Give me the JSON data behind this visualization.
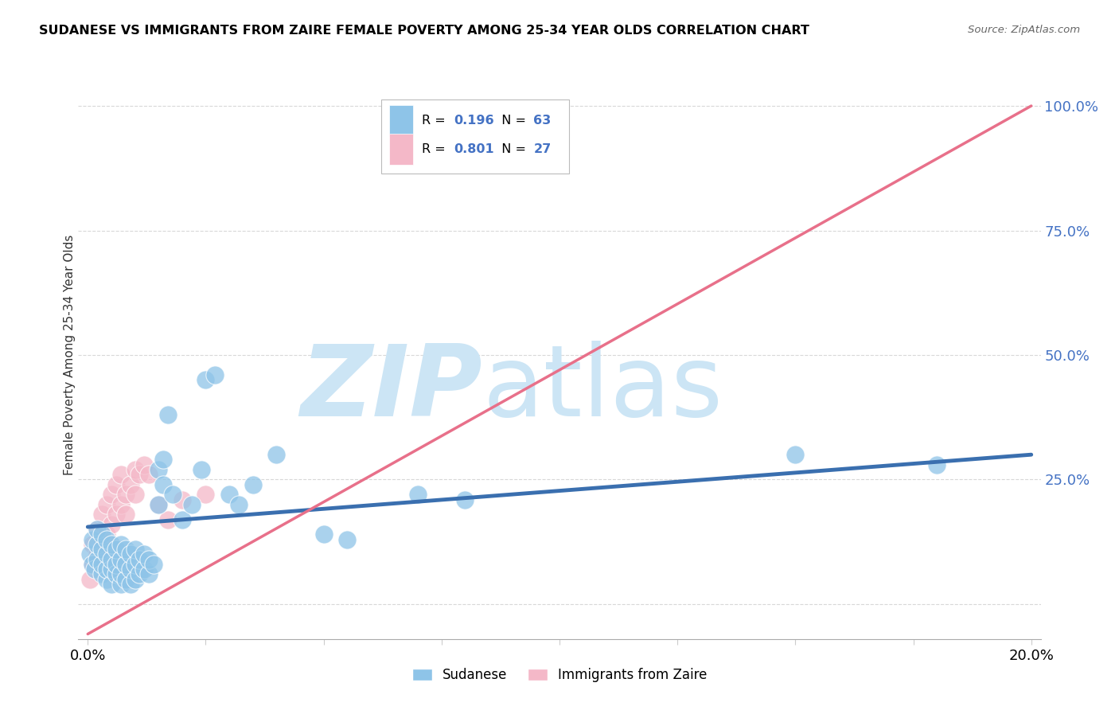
{
  "title": "SUDANESE VS IMMIGRANTS FROM ZAIRE FEMALE POVERTY AMONG 25-34 YEAR OLDS CORRELATION CHART",
  "source_text": "Source: ZipAtlas.com",
  "ylabel": "Female Poverty Among 25-34 Year Olds",
  "xlim": [
    -0.002,
    0.202
  ],
  "ylim": [
    -0.07,
    1.07
  ],
  "xtick_positions": [
    0.0,
    0.025,
    0.05,
    0.075,
    0.1,
    0.125,
    0.15,
    0.175,
    0.2
  ],
  "xticklabels_show": {
    "0.0": "0.0%",
    "0.2": "20.0%"
  },
  "ytick_positions": [
    0.0,
    0.25,
    0.5,
    0.75,
    1.0
  ],
  "yticklabels": [
    "",
    "25.0%",
    "50.0%",
    "75.0%",
    "100.0%"
  ],
  "blue_color": "#8ec4e8",
  "pink_color": "#f4b8c8",
  "blue_line_color": "#3a6faf",
  "pink_line_color": "#e8708a",
  "watermark_zip": "ZIP",
  "watermark_atlas": "atlas",
  "watermark_color": "#cce5f5",
  "background_color": "#ffffff",
  "grid_color": "#d8d8d8",
  "legend_label_blue": "Sudanese",
  "legend_label_pink": "Immigrants from Zaire",
  "blue_line_x0": 0.0,
  "blue_line_y0": 0.155,
  "blue_line_x1": 0.2,
  "blue_line_y1": 0.3,
  "pink_line_x0": 0.0,
  "pink_line_y0": -0.06,
  "pink_line_x1": 0.2,
  "pink_line_y1": 1.0,
  "blue_scatter_x": [
    0.0005,
    0.001,
    0.001,
    0.0015,
    0.002,
    0.002,
    0.002,
    0.003,
    0.003,
    0.003,
    0.003,
    0.004,
    0.004,
    0.004,
    0.004,
    0.005,
    0.005,
    0.005,
    0.005,
    0.006,
    0.006,
    0.006,
    0.007,
    0.007,
    0.007,
    0.007,
    0.008,
    0.008,
    0.008,
    0.009,
    0.009,
    0.009,
    0.01,
    0.01,
    0.01,
    0.011,
    0.011,
    0.012,
    0.012,
    0.013,
    0.013,
    0.014,
    0.015,
    0.015,
    0.016,
    0.016,
    0.017,
    0.018,
    0.02,
    0.022,
    0.024,
    0.025,
    0.027,
    0.03,
    0.032,
    0.035,
    0.04,
    0.05,
    0.055,
    0.07,
    0.08,
    0.15,
    0.18
  ],
  "blue_scatter_y": [
    0.1,
    0.08,
    0.13,
    0.07,
    0.09,
    0.12,
    0.15,
    0.06,
    0.08,
    0.11,
    0.14,
    0.05,
    0.07,
    0.1,
    0.13,
    0.04,
    0.07,
    0.09,
    0.12,
    0.06,
    0.08,
    0.11,
    0.04,
    0.06,
    0.09,
    0.12,
    0.05,
    0.08,
    0.11,
    0.04,
    0.07,
    0.1,
    0.05,
    0.08,
    0.11,
    0.06,
    0.09,
    0.07,
    0.1,
    0.06,
    0.09,
    0.08,
    0.2,
    0.27,
    0.24,
    0.29,
    0.38,
    0.22,
    0.17,
    0.2,
    0.27,
    0.45,
    0.46,
    0.22,
    0.2,
    0.24,
    0.3,
    0.14,
    0.13,
    0.22,
    0.21,
    0.3,
    0.28
  ],
  "pink_scatter_x": [
    0.0005,
    0.001,
    0.001,
    0.002,
    0.002,
    0.003,
    0.003,
    0.004,
    0.004,
    0.005,
    0.005,
    0.006,
    0.006,
    0.007,
    0.007,
    0.008,
    0.008,
    0.009,
    0.01,
    0.01,
    0.011,
    0.012,
    0.013,
    0.015,
    0.017,
    0.02,
    0.025
  ],
  "pink_scatter_y": [
    0.05,
    0.08,
    0.12,
    0.1,
    0.15,
    0.12,
    0.18,
    0.14,
    0.2,
    0.16,
    0.22,
    0.18,
    0.24,
    0.2,
    0.26,
    0.22,
    0.18,
    0.24,
    0.22,
    0.27,
    0.26,
    0.28,
    0.26,
    0.2,
    0.17,
    0.21,
    0.22
  ]
}
